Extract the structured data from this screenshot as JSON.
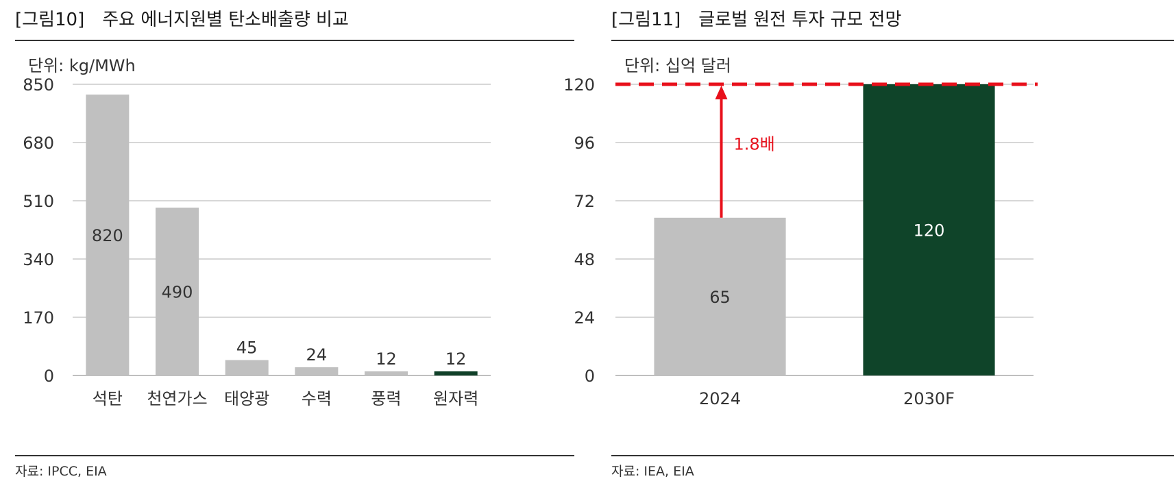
{
  "figures": [
    {
      "number": "[그림10]",
      "title": "주요 에너지원별 탄소배출량 비교",
      "unit": "단위: kg/MWh",
      "source": "자료: IPCC, EIA"
    },
    {
      "number": "[그림11]",
      "title": "글로벌 원전 투자 규모 전망",
      "unit": "단위: 십억 달러",
      "source": "자료: IEA, EIA"
    }
  ],
  "chart_data": [
    {
      "type": "bar",
      "categories": [
        "석탄",
        "천연가스",
        "태양광",
        "수력",
        "풍력",
        "원자력"
      ],
      "values": [
        820,
        490,
        45,
        24,
        12,
        12
      ],
      "data_labels": [
        "820",
        "490",
        "45",
        "24",
        "12",
        "12"
      ],
      "yticks": [
        "0",
        "170",
        "340",
        "510",
        "680",
        "850"
      ],
      "ylim": [
        0,
        850
      ],
      "grid": true,
      "bar_colors": [
        "#c0c0c0",
        "#c0c0c0",
        "#c0c0c0",
        "#c0c0c0",
        "#c0c0c0",
        "#0f4028"
      ]
    },
    {
      "type": "bar",
      "categories": [
        "2024",
        "2030F"
      ],
      "values": [
        65,
        120
      ],
      "data_labels": [
        "65",
        "120"
      ],
      "yticks": [
        "0",
        "24",
        "48",
        "72",
        "96",
        "120"
      ],
      "ylim": [
        0,
        120
      ],
      "grid": true,
      "bar_colors": [
        "#c0c0c0",
        "#0f4429"
      ],
      "annotation": {
        "text": "1.8배",
        "from": 65,
        "to": 120,
        "color": "#e8101b"
      },
      "reference_line": {
        "value": 120,
        "style": "dashed",
        "color": "#e8101b"
      }
    }
  ]
}
